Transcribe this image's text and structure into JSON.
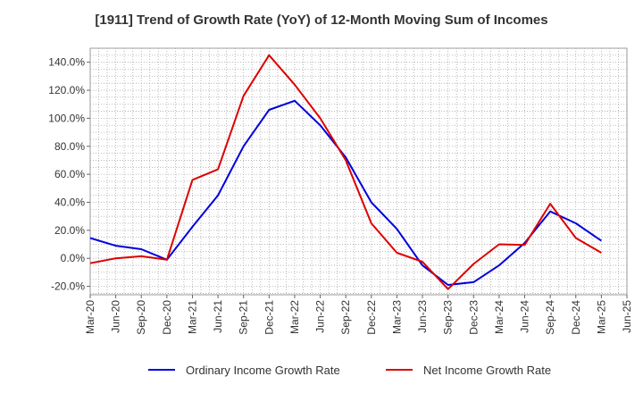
{
  "chart_data": {
    "type": "line",
    "title": "[1911]  Trend of Growth Rate (YoY) of 12-Month Moving Sum of Incomes",
    "xlabel": "",
    "ylabel": "",
    "ylim": [
      -26,
      150
    ],
    "y_ticks": [
      -20,
      0,
      20,
      40,
      60,
      80,
      100,
      120,
      140
    ],
    "y_tick_labels": [
      "-20.0%",
      "0.0%",
      "20.0%",
      "40.0%",
      "60.0%",
      "80.0%",
      "100.0%",
      "120.0%",
      "140.0%"
    ],
    "x_tick_labels": [
      "Mar-20",
      "Jun-20",
      "Sep-20",
      "Dec-20",
      "Mar-21",
      "Jun-21",
      "Sep-21",
      "Dec-21",
      "Mar-22",
      "Jun-22",
      "Sep-22",
      "Dec-22",
      "Mar-23",
      "Jun-23",
      "Sep-23",
      "Dec-23",
      "Mar-24",
      "Jun-24",
      "Sep-24",
      "Dec-24",
      "Mar-25",
      "Jun-25"
    ],
    "grid": true,
    "legend_position": "bottom",
    "series": [
      {
        "name": "Ordinary Income Growth Rate",
        "color": "#0000dd",
        "values": [
          14.5,
          9.0,
          6.5,
          -1.0,
          22.5,
          45.0,
          80.0,
          106.0,
          112.5,
          95.0,
          72.0,
          40.0,
          21.0,
          -5.0,
          -19.0,
          -17.0,
          -5.0,
          11.0,
          33.5,
          25.0,
          12.5
        ]
      },
      {
        "name": "Net Income Growth Rate",
        "color": "#dd0000",
        "values": [
          -3.5,
          0.0,
          1.5,
          -1.0,
          56.0,
          63.5,
          116.0,
          145.0,
          124.0,
          100.0,
          70.0,
          25.0,
          4.0,
          -2.5,
          -22.0,
          -4.0,
          10.0,
          9.5,
          39.0,
          14.5,
          4.0
        ]
      }
    ]
  }
}
